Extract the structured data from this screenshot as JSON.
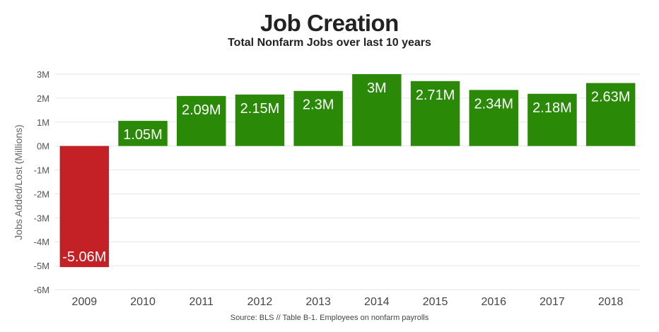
{
  "chart_data": {
    "type": "bar",
    "title": "Job Creation",
    "subtitle": "Total Nonfarm Jobs over last 10 years",
    "ylabel": "Jobs Added/Lost (Millions)",
    "xlabel": "",
    "source": "Source: BLS // Table B-1. Employees on nonfarm payrolls",
    "categories": [
      "2009",
      "2010",
      "2011",
      "2012",
      "2013",
      "2014",
      "2015",
      "2016",
      "2017",
      "2018"
    ],
    "values": [
      -5.06,
      1.05,
      2.09,
      2.15,
      2.3,
      3,
      2.71,
      2.34,
      2.18,
      2.63
    ],
    "data_labels": [
      "-5.06M",
      "1.05M",
      "2.09M",
      "2.15M",
      "2.3M",
      "3M",
      "2.71M",
      "2.34M",
      "2.18M",
      "2.63M"
    ],
    "yticks": [
      3,
      2,
      1,
      0,
      -1,
      -2,
      -3,
      -4,
      -5,
      -6
    ],
    "ytick_labels": [
      "3M",
      "2M",
      "1M",
      "0M",
      "-1M",
      "-2M",
      "-3M",
      "-4M",
      "-5M",
      "-6M"
    ],
    "ylim": [
      -6,
      3
    ],
    "grid": true,
    "legend": "none",
    "colors": {
      "positive": "#2a8a07",
      "negative": "#c32125",
      "grid": "#e6e6e6"
    }
  }
}
